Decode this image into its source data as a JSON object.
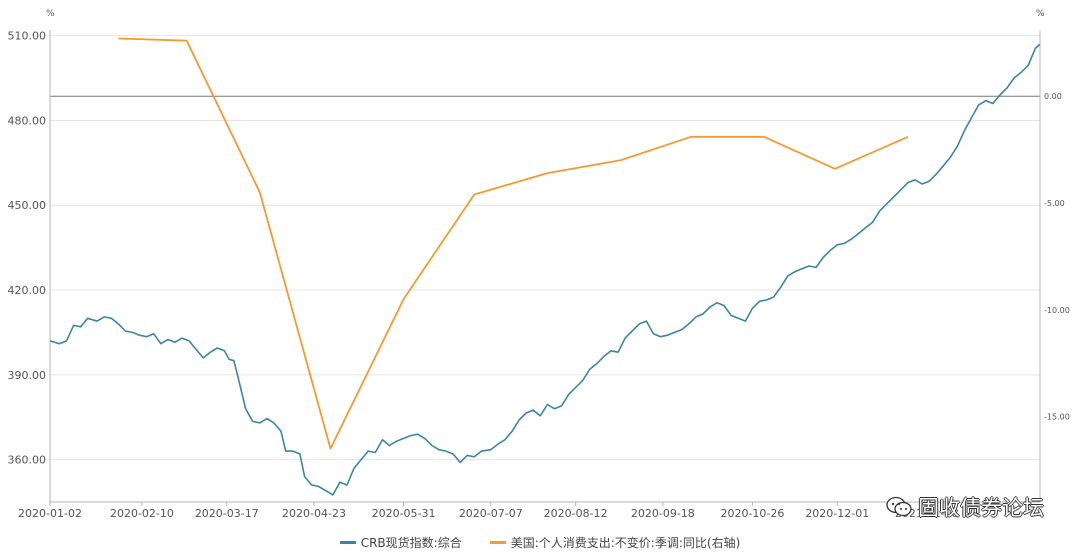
{
  "chart_data": {
    "type": "line",
    "left_unit": "%",
    "right_unit": "%",
    "x_tick_labels": [
      "2020-01-02",
      "2020-02-10",
      "2020-03-17",
      "2020-04-23",
      "2020-05-31",
      "2020-07-07",
      "2020-08-12",
      "2020-09-18",
      "2020-10-26",
      "2020-12-01",
      "2021-01-08"
    ],
    "y_left": {
      "min": 345,
      "max": 512,
      "ticks": [
        "510.00",
        "480.00",
        "450.00",
        "420.00",
        "390.00",
        "360.00"
      ],
      "tick_values": [
        510,
        480,
        450,
        420,
        390,
        360
      ]
    },
    "y_right": {
      "min": -19.0,
      "max": 3.1,
      "ticks": [
        "0.00",
        "-5.00",
        "-10.00",
        "-15.00"
      ],
      "tick_values": [
        0,
        -5,
        -10,
        -15
      ]
    },
    "series": [
      {
        "name": "CRB现货指数:综合",
        "axis": "left",
        "color": "#3b86a8",
        "points": [
          [
            "2020-01-02",
            402.0
          ],
          [
            "2020-01-06",
            401.0
          ],
          [
            "2020-01-09",
            402.0
          ],
          [
            "2020-01-12",
            407.5
          ],
          [
            "2020-01-15",
            407.0
          ],
          [
            "2020-01-18",
            410.0
          ],
          [
            "2020-01-22",
            409.0
          ],
          [
            "2020-01-25",
            410.5
          ],
          [
            "2020-01-28",
            410.0
          ],
          [
            "2020-01-31",
            408.0
          ],
          [
            "2020-02-03",
            405.5
          ],
          [
            "2020-02-06",
            405.0
          ],
          [
            "2020-02-09",
            404.0
          ],
          [
            "2020-02-12",
            403.5
          ],
          [
            "2020-02-15",
            404.5
          ],
          [
            "2020-02-18",
            401.0
          ],
          [
            "2020-02-21",
            402.5
          ],
          [
            "2020-02-24",
            401.5
          ],
          [
            "2020-02-27",
            403.0
          ],
          [
            "2020-03-01",
            402.0
          ],
          [
            "2020-03-04",
            399.0
          ],
          [
            "2020-03-07",
            396.0
          ],
          [
            "2020-03-10",
            398.0
          ],
          [
            "2020-03-13",
            399.5
          ],
          [
            "2020-03-16",
            398.5
          ],
          [
            "2020-03-18",
            395.5
          ],
          [
            "2020-03-20",
            395.0
          ],
          [
            "2020-03-23",
            385.0
          ],
          [
            "2020-03-25",
            378.0
          ],
          [
            "2020-03-28",
            373.5
          ],
          [
            "2020-03-31",
            373.0
          ],
          [
            "2020-04-03",
            374.5
          ],
          [
            "2020-04-06",
            373.0
          ],
          [
            "2020-04-09",
            370.0
          ],
          [
            "2020-04-11",
            363.0
          ],
          [
            "2020-04-14",
            363.0
          ],
          [
            "2020-04-17",
            362.0
          ],
          [
            "2020-04-19",
            354.0
          ],
          [
            "2020-04-22",
            351.0
          ],
          [
            "2020-04-25",
            350.5
          ],
          [
            "2020-04-28",
            349.0
          ],
          [
            "2020-05-01",
            347.5
          ],
          [
            "2020-05-04",
            352.0
          ],
          [
            "2020-05-07",
            351.0
          ],
          [
            "2020-05-10",
            357.0
          ],
          [
            "2020-05-13",
            360.0
          ],
          [
            "2020-05-16",
            363.0
          ],
          [
            "2020-05-19",
            362.5
          ],
          [
            "2020-05-22",
            367.0
          ],
          [
            "2020-05-25",
            365.0
          ],
          [
            "2020-05-28",
            366.5
          ],
          [
            "2020-05-31",
            367.5
          ],
          [
            "2020-06-03",
            368.5
          ],
          [
            "2020-06-06",
            369.0
          ],
          [
            "2020-06-09",
            367.5
          ],
          [
            "2020-06-12",
            365.0
          ],
          [
            "2020-06-15",
            363.5
          ],
          [
            "2020-06-18",
            363.0
          ],
          [
            "2020-06-21",
            362.0
          ],
          [
            "2020-06-24",
            359.0
          ],
          [
            "2020-06-27",
            361.5
          ],
          [
            "2020-06-30",
            361.0
          ],
          [
            "2020-07-03",
            363.0
          ],
          [
            "2020-07-07",
            363.5
          ],
          [
            "2020-07-10",
            365.5
          ],
          [
            "2020-07-13",
            367.0
          ],
          [
            "2020-07-16",
            370.0
          ],
          [
            "2020-07-19",
            374.0
          ],
          [
            "2020-07-22",
            376.5
          ],
          [
            "2020-07-25",
            377.5
          ],
          [
            "2020-07-28",
            375.5
          ],
          [
            "2020-07-31",
            379.5
          ],
          [
            "2020-08-03",
            378.0
          ],
          [
            "2020-08-06",
            379.0
          ],
          [
            "2020-08-09",
            383.0
          ],
          [
            "2020-08-12",
            385.5
          ],
          [
            "2020-08-15",
            388.0
          ],
          [
            "2020-08-18",
            392.0
          ],
          [
            "2020-08-21",
            394.0
          ],
          [
            "2020-08-24",
            396.5
          ],
          [
            "2020-08-27",
            398.5
          ],
          [
            "2020-08-30",
            398.0
          ],
          [
            "2020-09-02",
            403.0
          ],
          [
            "2020-09-05",
            405.5
          ],
          [
            "2020-09-08",
            408.0
          ],
          [
            "2020-09-11",
            409.0
          ],
          [
            "2020-09-14",
            404.5
          ],
          [
            "2020-09-17",
            403.5
          ],
          [
            "2020-09-20",
            404.0
          ],
          [
            "2020-09-23",
            405.0
          ],
          [
            "2020-09-26",
            406.0
          ],
          [
            "2020-09-29",
            408.0
          ],
          [
            "2020-10-02",
            410.5
          ],
          [
            "2020-10-05",
            411.5
          ],
          [
            "2020-10-08",
            414.0
          ],
          [
            "2020-10-11",
            415.5
          ],
          [
            "2020-10-14",
            414.5
          ],
          [
            "2020-10-17",
            411.0
          ],
          [
            "2020-10-20",
            410.0
          ],
          [
            "2020-10-23",
            409.0
          ],
          [
            "2020-10-26",
            413.5
          ],
          [
            "2020-10-29",
            416.0
          ],
          [
            "2020-11-01",
            416.5
          ],
          [
            "2020-11-04",
            417.5
          ],
          [
            "2020-11-07",
            421.0
          ],
          [
            "2020-11-10",
            425.0
          ],
          [
            "2020-11-13",
            426.5
          ],
          [
            "2020-11-16",
            427.5
          ],
          [
            "2020-11-19",
            428.5
          ],
          [
            "2020-11-22",
            428.0
          ],
          [
            "2020-11-25",
            431.5
          ],
          [
            "2020-11-28",
            434.0
          ],
          [
            "2020-12-01",
            436.0
          ],
          [
            "2020-12-04",
            436.5
          ],
          [
            "2020-12-07",
            438.0
          ],
          [
            "2020-12-10",
            440.0
          ],
          [
            "2020-12-13",
            442.0
          ],
          [
            "2020-12-16",
            444.0
          ],
          [
            "2020-12-19",
            448.0
          ],
          [
            "2020-12-22",
            450.5
          ],
          [
            "2020-12-25",
            453.0
          ],
          [
            "2020-12-28",
            455.5
          ],
          [
            "2020-12-31",
            458.0
          ],
          [
            "2021-01-03",
            459.0
          ],
          [
            "2021-01-06",
            457.5
          ],
          [
            "2021-01-09",
            458.5
          ],
          [
            "2021-01-12",
            461.0
          ],
          [
            "2021-01-15",
            464.0
          ],
          [
            "2021-01-18",
            467.0
          ],
          [
            "2021-01-21",
            471.0
          ],
          [
            "2021-01-24",
            476.5
          ],
          [
            "2021-01-27",
            481.0
          ],
          [
            "2021-01-30",
            485.5
          ],
          [
            "2021-02-02",
            487.0
          ],
          [
            "2021-02-05",
            486.0
          ],
          [
            "2021-02-08",
            489.0
          ],
          [
            "2021-02-11",
            491.5
          ],
          [
            "2021-02-14",
            495.0
          ],
          [
            "2021-02-17",
            497.0
          ],
          [
            "2021-02-20",
            499.5
          ],
          [
            "2021-02-23",
            505.5
          ],
          [
            "2021-02-25",
            507.0
          ]
        ]
      },
      {
        "name": "美国:个人消费支出:不变价:季调:同比(右轴)",
        "axis": "right",
        "color": "#f39b30",
        "points": [
          [
            "2020-01-31",
            2.7
          ],
          [
            "2020-02-29",
            2.6
          ],
          [
            "2020-03-31",
            -4.5
          ],
          [
            "2020-04-30",
            -16.5
          ],
          [
            "2020-05-31",
            -9.5
          ],
          [
            "2020-06-30",
            -4.6
          ],
          [
            "2020-07-31",
            -3.6
          ],
          [
            "2020-08-31",
            -3.0
          ],
          [
            "2020-09-30",
            -1.9
          ],
          [
            "2020-10-31",
            -1.9
          ],
          [
            "2020-11-30",
            -3.4
          ],
          [
            "2020-12-31",
            -1.9
          ]
        ]
      }
    ]
  },
  "legend": {
    "crb_label": "CRB现货指数:综合",
    "pce_label": "美国:个人消费支出:不变价:季调:同比(右轴)",
    "crb_color": "#3b86a8",
    "pce_color": "#f39b30"
  },
  "watermark": {
    "text": "固收债券论坛",
    "icon": "wechat-icon"
  }
}
